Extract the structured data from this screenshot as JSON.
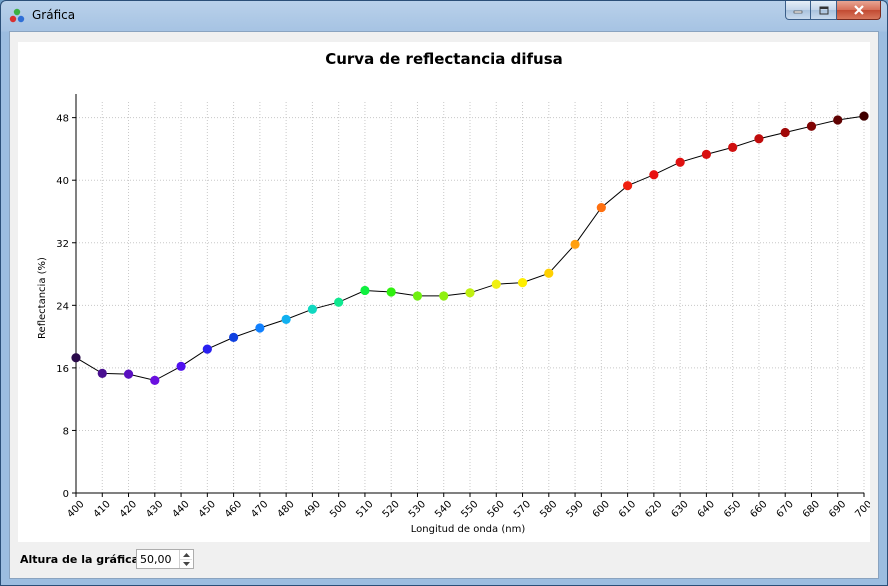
{
  "window": {
    "title": "Gráfica"
  },
  "controls": {
    "height_label": "Altura de la gráfica:",
    "height_value": "50,00"
  },
  "colors": {
    "line": "#000000",
    "grid": "#c8c8c8",
    "background": "#ffffff"
  },
  "chart_data": {
    "type": "line",
    "title": "Curva de reflectancia difusa",
    "xlabel": "Longitud de onda (nm)",
    "ylabel": "Reflectancia (%)",
    "xlim": [
      400,
      700
    ],
    "ylim": [
      0,
      50
    ],
    "xticks": [
      400,
      410,
      420,
      430,
      440,
      450,
      460,
      470,
      480,
      490,
      500,
      510,
      520,
      530,
      540,
      550,
      560,
      570,
      580,
      590,
      600,
      610,
      620,
      630,
      640,
      650,
      660,
      670,
      680,
      690,
      700
    ],
    "yticks": [
      0,
      8,
      16,
      24,
      32,
      40,
      48
    ],
    "grid": true,
    "x": [
      400,
      410,
      420,
      430,
      440,
      450,
      460,
      470,
      480,
      490,
      500,
      510,
      520,
      530,
      540,
      550,
      560,
      570,
      580,
      590,
      600,
      610,
      620,
      630,
      640,
      650,
      660,
      670,
      680,
      690,
      700
    ],
    "y": [
      17.3,
      15.3,
      15.2,
      14.4,
      16.2,
      18.4,
      19.9,
      21.1,
      22.2,
      23.5,
      24.4,
      25.9,
      25.7,
      25.2,
      25.2,
      25.6,
      26.7,
      26.9,
      28.1,
      31.8,
      36.5,
      39.3,
      40.7,
      42.3,
      43.3,
      44.2,
      45.3,
      46.1,
      46.9,
      47.7,
      48.2
    ],
    "point_colors": [
      "#2a0a4a",
      "#4a1090",
      "#5a10c0",
      "#6a10e0",
      "#5010f0",
      "#2a20f0",
      "#1040e0",
      "#1080ff",
      "#10b0f0",
      "#10d8c0",
      "#10e890",
      "#10f040",
      "#30f010",
      "#70f010",
      "#90f010",
      "#c0f010",
      "#f0f010",
      "#ffee00",
      "#ffd000",
      "#ffa010",
      "#ff7010",
      "#f02010",
      "#e81010",
      "#e01010",
      "#d81010",
      "#d01010",
      "#c00c0c",
      "#a00808",
      "#800404",
      "#600202",
      "#400000"
    ]
  }
}
